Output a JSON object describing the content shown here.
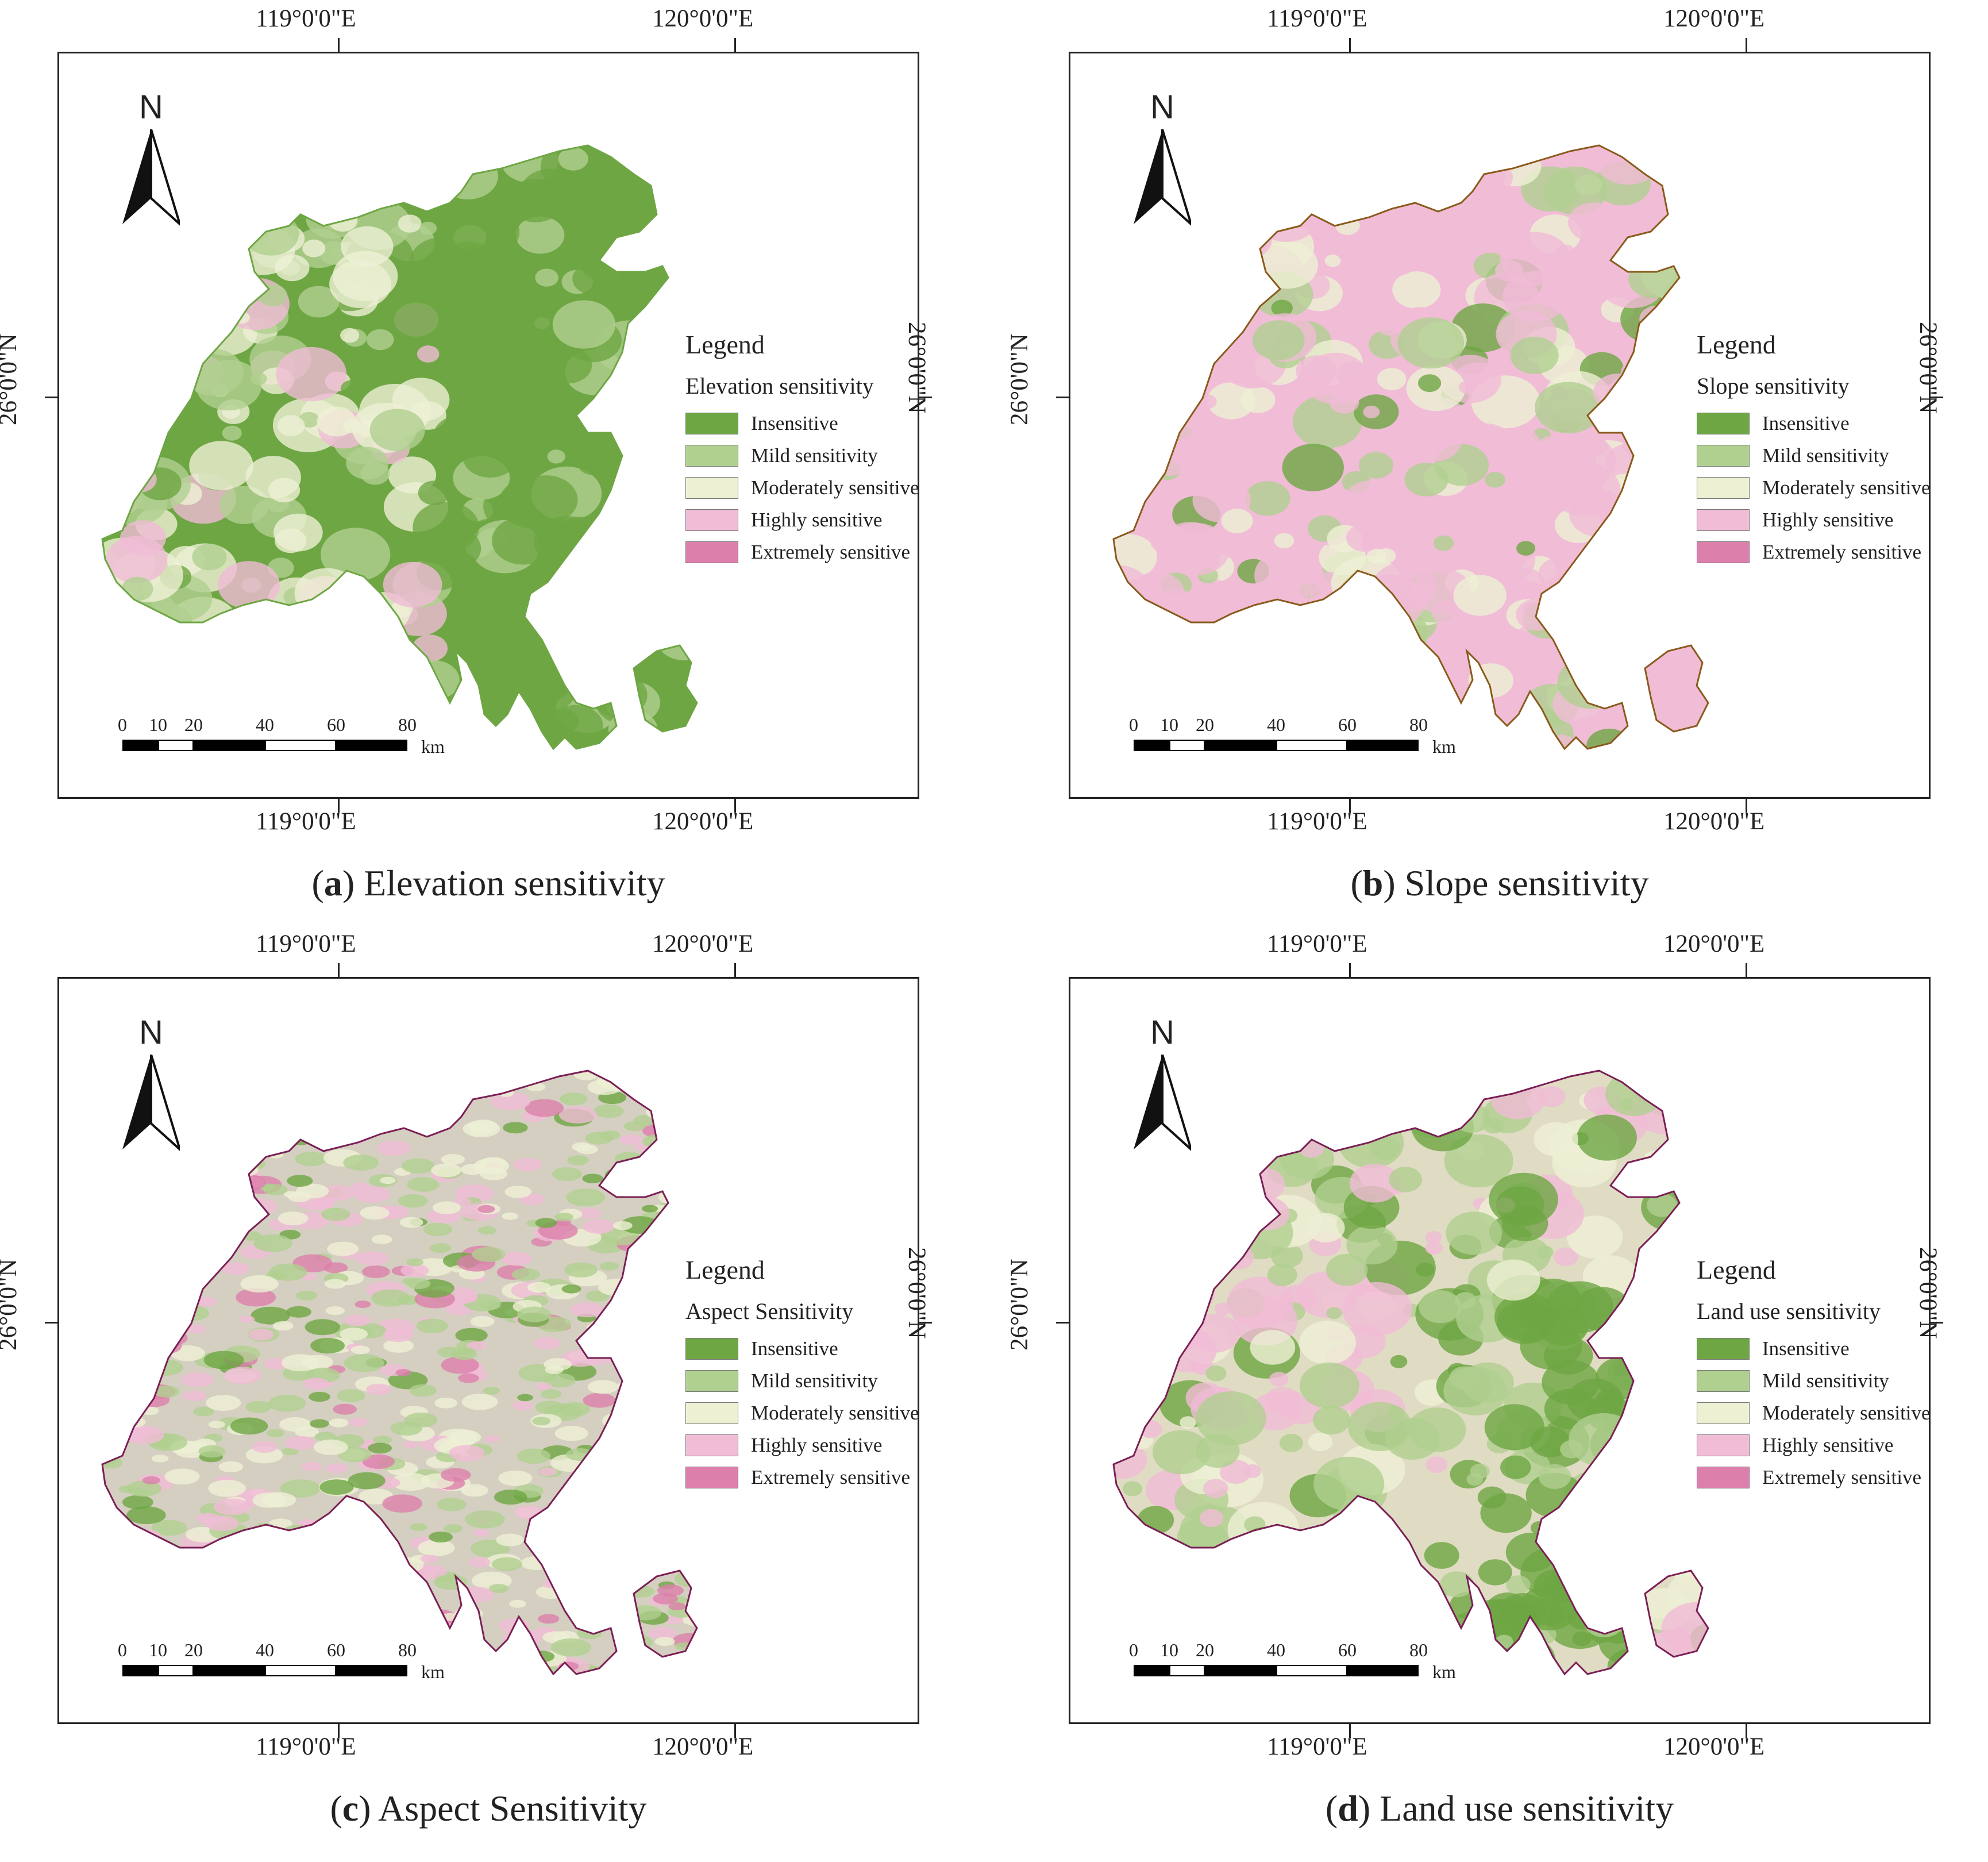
{
  "legend_title": "Legend",
  "classes": [
    {
      "label": "Insensitive",
      "color": "#6ea644"
    },
    {
      "label": "Mild sensitivity",
      "color": "#b0d090"
    },
    {
      "label": "Moderately sensitive",
      "color": "#eef0d4"
    },
    {
      "label": "Highly sensitive",
      "color": "#f0bcd6"
    },
    {
      "label": "Extremely sensitive",
      "color": "#dc7fab"
    }
  ],
  "ticks": {
    "lon_left": "119°0'0\"E",
    "lon_right": "120°0'0\"E",
    "lat": "26°0'0\"N"
  },
  "north": "N",
  "scale": {
    "labels": [
      "0",
      "10",
      "20",
      "40",
      "60",
      "80"
    ],
    "unit": "km"
  },
  "panels": [
    {
      "letter": "a",
      "caption": " Elevation sensitivity",
      "legend_subtitle": "Elevation sensitivity",
      "dominant": "#6ea644",
      "secondary": "#b0d090",
      "outline": "#6ea644"
    },
    {
      "letter": "b",
      "caption": " Slope sensitivity",
      "legend_subtitle": "Slope sensitivity",
      "dominant": "#f0bcd6",
      "secondary": "#b0d090",
      "outline": "#8a5a1c"
    },
    {
      "letter": "c",
      "caption": " Aspect Sensitivity",
      "legend_subtitle": "Aspect Sensitivity",
      "dominant": "#d4cfc0",
      "secondary": "#b0d090",
      "outline": "#7a1f56"
    },
    {
      "letter": "d",
      "caption": " Land use sensitivity",
      "legend_subtitle": "Land use sensitivity",
      "dominant": "#e0dcc4",
      "secondary": "#6ea644",
      "outline": "#7a1f56"
    }
  ]
}
